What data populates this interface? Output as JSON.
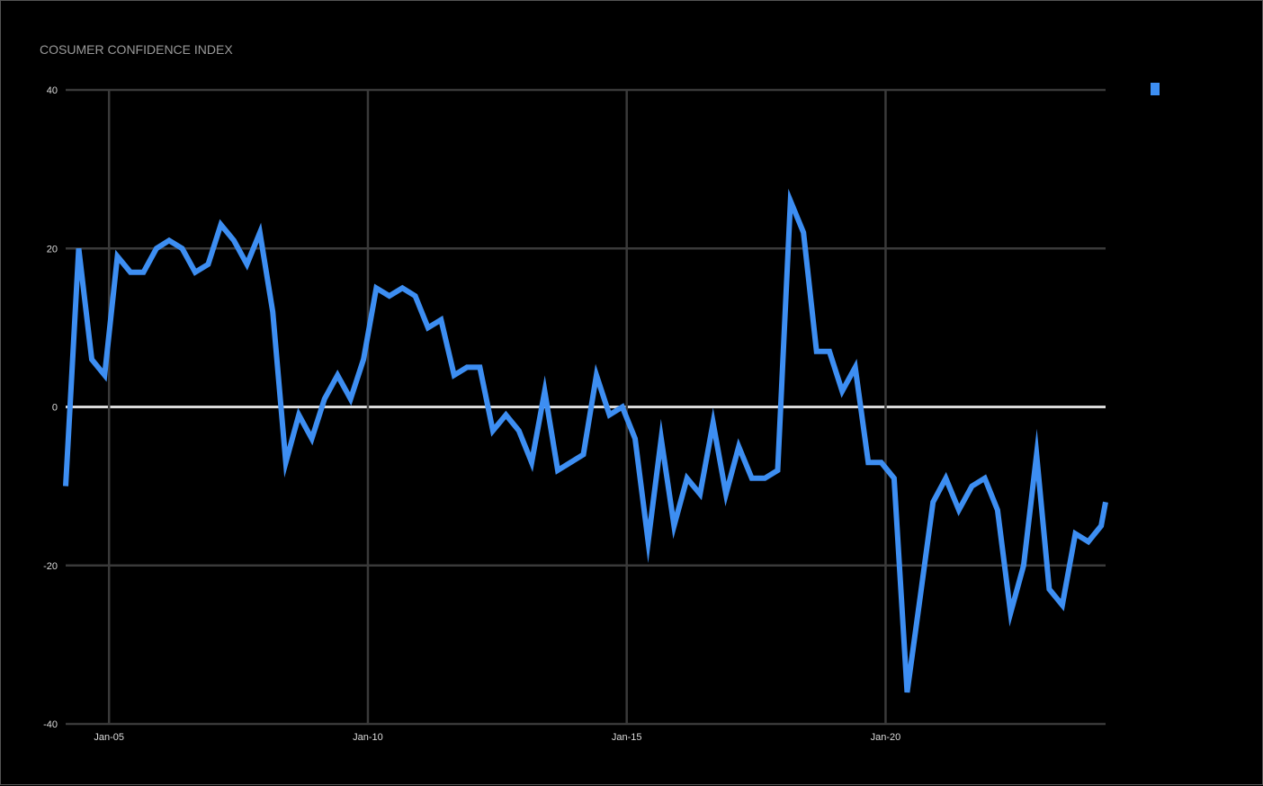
{
  "chart_data": {
    "type": "line",
    "title": "COSUMER CONFIDENCE INDEX",
    "xlabel": "",
    "ylabel": "",
    "x_axis": {
      "type": "date",
      "min": "2004-03-01",
      "max": "2024-04-01",
      "ticks": [
        {
          "value": "2005-01-01",
          "label": "Jan-05"
        },
        {
          "value": "2010-01-01",
          "label": "Jan-10"
        },
        {
          "value": "2015-01-01",
          "label": "Jan-15"
        },
        {
          "value": "2020-01-01",
          "label": "Jan-20"
        }
      ]
    },
    "y_axis": {
      "min": -40,
      "max": 40,
      "ticks": [
        {
          "value": 40,
          "label": "40"
        },
        {
          "value": 20,
          "label": "20"
        },
        {
          "value": 0,
          "label": "0"
        },
        {
          "value": -20,
          "label": "-20"
        },
        {
          "value": -40,
          "label": "-40"
        }
      ]
    },
    "grid": true,
    "legend": {
      "position": "top-right",
      "show_label": false
    },
    "series": [
      {
        "color": "#3d8ef2",
        "points": [
          {
            "x": "2004-03-01",
            "y": -10
          },
          {
            "x": "2004-06-01",
            "y": 20
          },
          {
            "x": "2004-09-01",
            "y": 6
          },
          {
            "x": "2004-12-01",
            "y": 4
          },
          {
            "x": "2005-03-01",
            "y": 19
          },
          {
            "x": "2005-06-01",
            "y": 17
          },
          {
            "x": "2005-09-01",
            "y": 17
          },
          {
            "x": "2005-12-01",
            "y": 20
          },
          {
            "x": "2006-03-01",
            "y": 21
          },
          {
            "x": "2006-06-01",
            "y": 20
          },
          {
            "x": "2006-09-01",
            "y": 17
          },
          {
            "x": "2006-12-01",
            "y": 18
          },
          {
            "x": "2007-03-01",
            "y": 23
          },
          {
            "x": "2007-06-01",
            "y": 21
          },
          {
            "x": "2007-09-01",
            "y": 18
          },
          {
            "x": "2007-12-01",
            "y": 22
          },
          {
            "x": "2008-03-01",
            "y": 12
          },
          {
            "x": "2008-06-01",
            "y": -7
          },
          {
            "x": "2008-09-01",
            "y": -1
          },
          {
            "x": "2008-12-01",
            "y": -4
          },
          {
            "x": "2009-03-01",
            "y": 1
          },
          {
            "x": "2009-06-01",
            "y": 4
          },
          {
            "x": "2009-09-01",
            "y": 1
          },
          {
            "x": "2009-12-01",
            "y": 6
          },
          {
            "x": "2010-03-01",
            "y": 15
          },
          {
            "x": "2010-06-01",
            "y": 14
          },
          {
            "x": "2010-09-01",
            "y": 15
          },
          {
            "x": "2010-12-01",
            "y": 14
          },
          {
            "x": "2011-03-01",
            "y": 10
          },
          {
            "x": "2011-06-01",
            "y": 11
          },
          {
            "x": "2011-09-01",
            "y": 4
          },
          {
            "x": "2011-12-01",
            "y": 5
          },
          {
            "x": "2012-03-01",
            "y": 5
          },
          {
            "x": "2012-06-01",
            "y": -3
          },
          {
            "x": "2012-09-01",
            "y": -1
          },
          {
            "x": "2012-12-01",
            "y": -3
          },
          {
            "x": "2013-03-01",
            "y": -7
          },
          {
            "x": "2013-06-01",
            "y": 2
          },
          {
            "x": "2013-09-01",
            "y": -8
          },
          {
            "x": "2013-12-01",
            "y": -7
          },
          {
            "x": "2014-03-01",
            "y": -6
          },
          {
            "x": "2014-06-01",
            "y": 4
          },
          {
            "x": "2014-09-01",
            "y": -1
          },
          {
            "x": "2014-12-01",
            "y": 0
          },
          {
            "x": "2015-03-01",
            "y": -4
          },
          {
            "x": "2015-06-01",
            "y": -17
          },
          {
            "x": "2015-09-01",
            "y": -4
          },
          {
            "x": "2015-12-01",
            "y": -15
          },
          {
            "x": "2016-03-01",
            "y": -9
          },
          {
            "x": "2016-06-01",
            "y": -11
          },
          {
            "x": "2016-09-01",
            "y": -2
          },
          {
            "x": "2016-12-01",
            "y": -11
          },
          {
            "x": "2017-03-01",
            "y": -5
          },
          {
            "x": "2017-06-01",
            "y": -9
          },
          {
            "x": "2017-09-01",
            "y": -9
          },
          {
            "x": "2017-12-01",
            "y": -8
          },
          {
            "x": "2018-03-01",
            "y": 26
          },
          {
            "x": "2018-06-01",
            "y": 22
          },
          {
            "x": "2018-09-01",
            "y": 7
          },
          {
            "x": "2018-12-01",
            "y": 7
          },
          {
            "x": "2019-03-01",
            "y": 2
          },
          {
            "x": "2019-06-01",
            "y": 5
          },
          {
            "x": "2019-09-01",
            "y": -7
          },
          {
            "x": "2019-12-01",
            "y": -7
          },
          {
            "x": "2020-03-01",
            "y": -9
          },
          {
            "x": "2020-06-01",
            "y": -36
          },
          {
            "x": "2020-09-01",
            "y": -24
          },
          {
            "x": "2020-12-01",
            "y": -12
          },
          {
            "x": "2021-03-01",
            "y": -9
          },
          {
            "x": "2021-06-01",
            "y": -13
          },
          {
            "x": "2021-09-01",
            "y": -10
          },
          {
            "x": "2021-12-01",
            "y": -9
          },
          {
            "x": "2022-03-01",
            "y": -13
          },
          {
            "x": "2022-06-01",
            "y": -26
          },
          {
            "x": "2022-09-01",
            "y": -20
          },
          {
            "x": "2022-12-01",
            "y": -6
          },
          {
            "x": "2023-03-01",
            "y": -23
          },
          {
            "x": "2023-06-01",
            "y": -25
          },
          {
            "x": "2023-09-01",
            "y": -16
          },
          {
            "x": "2023-12-01",
            "y": -17
          },
          {
            "x": "2024-03-01",
            "y": -15
          },
          {
            "x": "2024-04-01",
            "y": -12
          }
        ]
      }
    ]
  }
}
